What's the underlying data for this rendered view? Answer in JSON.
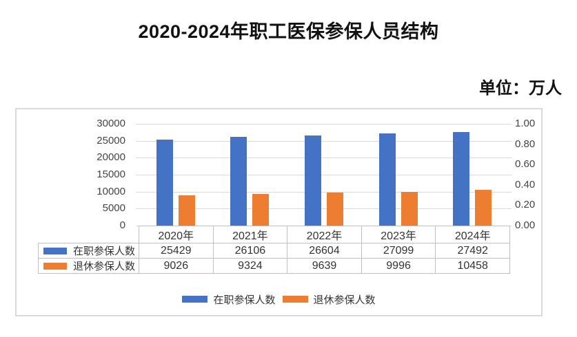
{
  "title": "2020-2024年职工医保参保人员结构",
  "unit_label": "单位：万人",
  "colors": {
    "series1": "#4472C4",
    "series2": "#ED7D31",
    "gridline": "#D9D9D9",
    "panel_border": "#D9D9D9",
    "table_border": "#BFBFBF",
    "axis_text": "#444444",
    "title_text": "#111111"
  },
  "chart_data": {
    "type": "bar",
    "title": "2020-2024年职工医保参保人员结构",
    "subtitle": "单位：万人",
    "categories": [
      "2020年",
      "2021年",
      "2022年",
      "2023年",
      "2024年"
    ],
    "series": [
      {
        "key": "active",
        "name": "在职参保人数",
        "color": "#4472C4",
        "values": [
          25429,
          26106,
          26604,
          27099,
          27492
        ]
      },
      {
        "key": "retired",
        "name": "退休参保人数",
        "color": "#ED7D31",
        "values": [
          9026,
          9324,
          9639,
          9996,
          10458
        ]
      }
    ],
    "left_axis": {
      "min": 0,
      "max": 30000,
      "step": 5000,
      "ticks": [
        "0",
        "5000",
        "10000",
        "15000",
        "20000",
        "25000",
        "30000"
      ]
    },
    "right_axis": {
      "min": 0.0,
      "max": 1.0,
      "step": 0.2,
      "ticks": [
        "0.00",
        "0.20",
        "0.40",
        "0.60",
        "0.80",
        "1.00"
      ]
    },
    "grid": true,
    "legend_position": "bottom",
    "data_table_shown": true
  }
}
